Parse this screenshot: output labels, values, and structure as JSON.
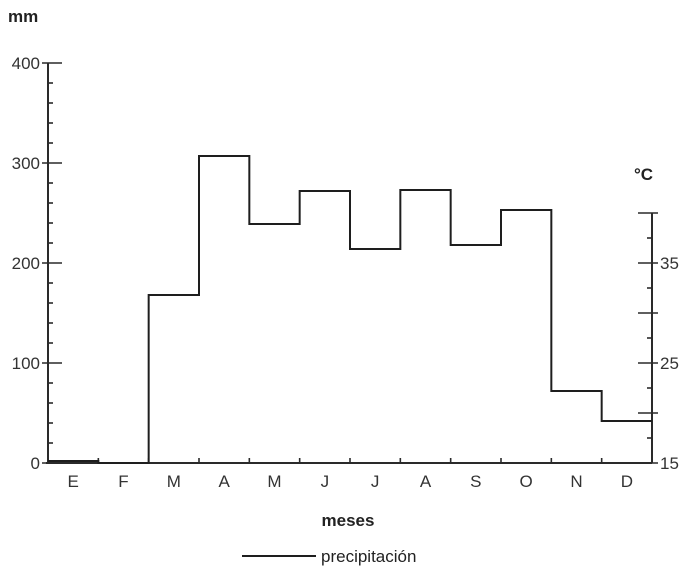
{
  "chart_data": {
    "type": "line",
    "step": true,
    "categories": [
      "E",
      "F",
      "M",
      "A",
      "M",
      "J",
      "J",
      "A",
      "S",
      "O",
      "N",
      "D"
    ],
    "series": [
      {
        "name": "precipitación",
        "axis": "left",
        "values": [
          2,
          0,
          168,
          307,
          239,
          272,
          214,
          273,
          218,
          253,
          72,
          42
        ]
      }
    ],
    "xlabel": "meses",
    "y_left": {
      "unit": "mm",
      "ylim": [
        0,
        400
      ],
      "ticks": [
        "0",
        "100",
        "200",
        "300",
        "400"
      ]
    },
    "y_right": {
      "unit": "°C",
      "ylim": [
        15,
        40
      ],
      "ticks": [
        "15",
        "25",
        "35"
      ]
    },
    "grid": false,
    "legend": {
      "position": "bottom",
      "entries": [
        "precipitación"
      ]
    },
    "colors": {
      "axis": "#2a2a2a",
      "series": "#1e1e1e"
    }
  }
}
